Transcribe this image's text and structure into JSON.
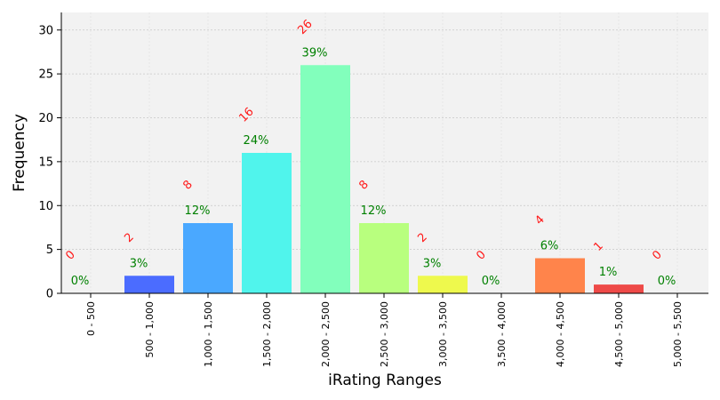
{
  "chart_data": {
    "type": "bar",
    "categories": [
      "0 - 500",
      "500 - 1,000",
      "1,000 - 1,500",
      "1,500 - 2,000",
      "2,000 - 2,500",
      "2,500 - 3,000",
      "3,000 - 3,500",
      "3,500 - 4,000",
      "4,000 - 4,500",
      "4,500 - 5,000",
      "5,000 - 5,500"
    ],
    "values": [
      0,
      2,
      8,
      16,
      26,
      8,
      2,
      0,
      4,
      1,
      0
    ],
    "count_labels": [
      "0",
      "2",
      "8",
      "16",
      "26",
      "8",
      "2",
      "0",
      "4",
      "1",
      "0"
    ],
    "percent_labels": [
      "0%",
      "3%",
      "12%",
      "24%",
      "39%",
      "12%",
      "3%",
      "0%",
      "6%",
      "1%",
      "0%"
    ],
    "colors": [
      "#6a00ff",
      "#4b6cff",
      "#4aa8ff",
      "#50f4ec",
      "#82ffbc",
      "#b8ff7e",
      "#eef94d",
      "#ffbf3c",
      "#ff844b",
      "#ee4a48",
      "#c8102e"
    ],
    "xlabel": "iRating Ranges",
    "ylabel": "Frequency",
    "yticks": [
      0,
      5,
      10,
      15,
      20,
      25,
      30
    ],
    "ylim": [
      0,
      32
    ],
    "grid": true,
    "background": "#f2f2f2"
  }
}
